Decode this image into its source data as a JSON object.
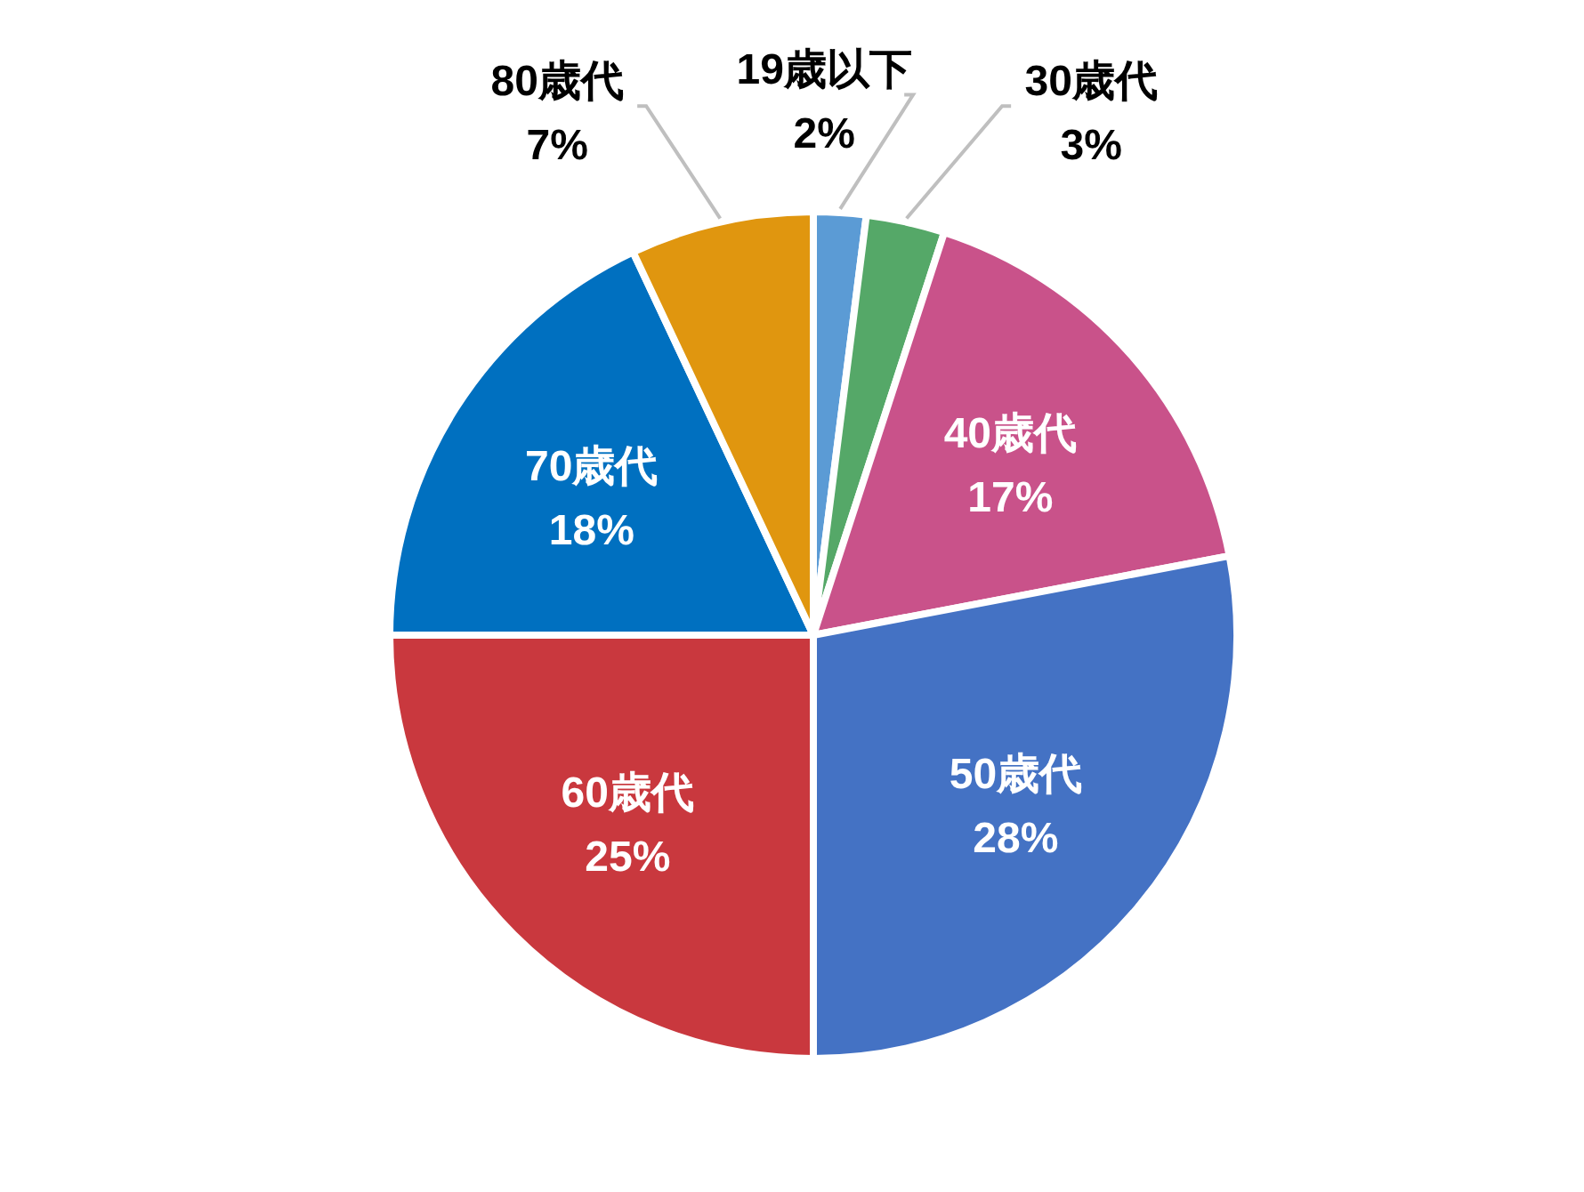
{
  "chart_data": {
    "type": "pie",
    "categories": [
      "19歳以下",
      "30歳代",
      "40歳代",
      "50歳代",
      "60歳代",
      "70歳代",
      "80歳代"
    ],
    "values": [
      2,
      3,
      17,
      28,
      25,
      18,
      7
    ],
    "colors": [
      "#5b9bd5",
      "#55a868",
      "#c9528a",
      "#4472c4",
      "#c9383e",
      "#0070c0",
      "#e0960f"
    ],
    "value_labels": [
      "2%",
      "3%",
      "17%",
      "28%",
      "25%",
      "18%",
      "7%"
    ]
  }
}
